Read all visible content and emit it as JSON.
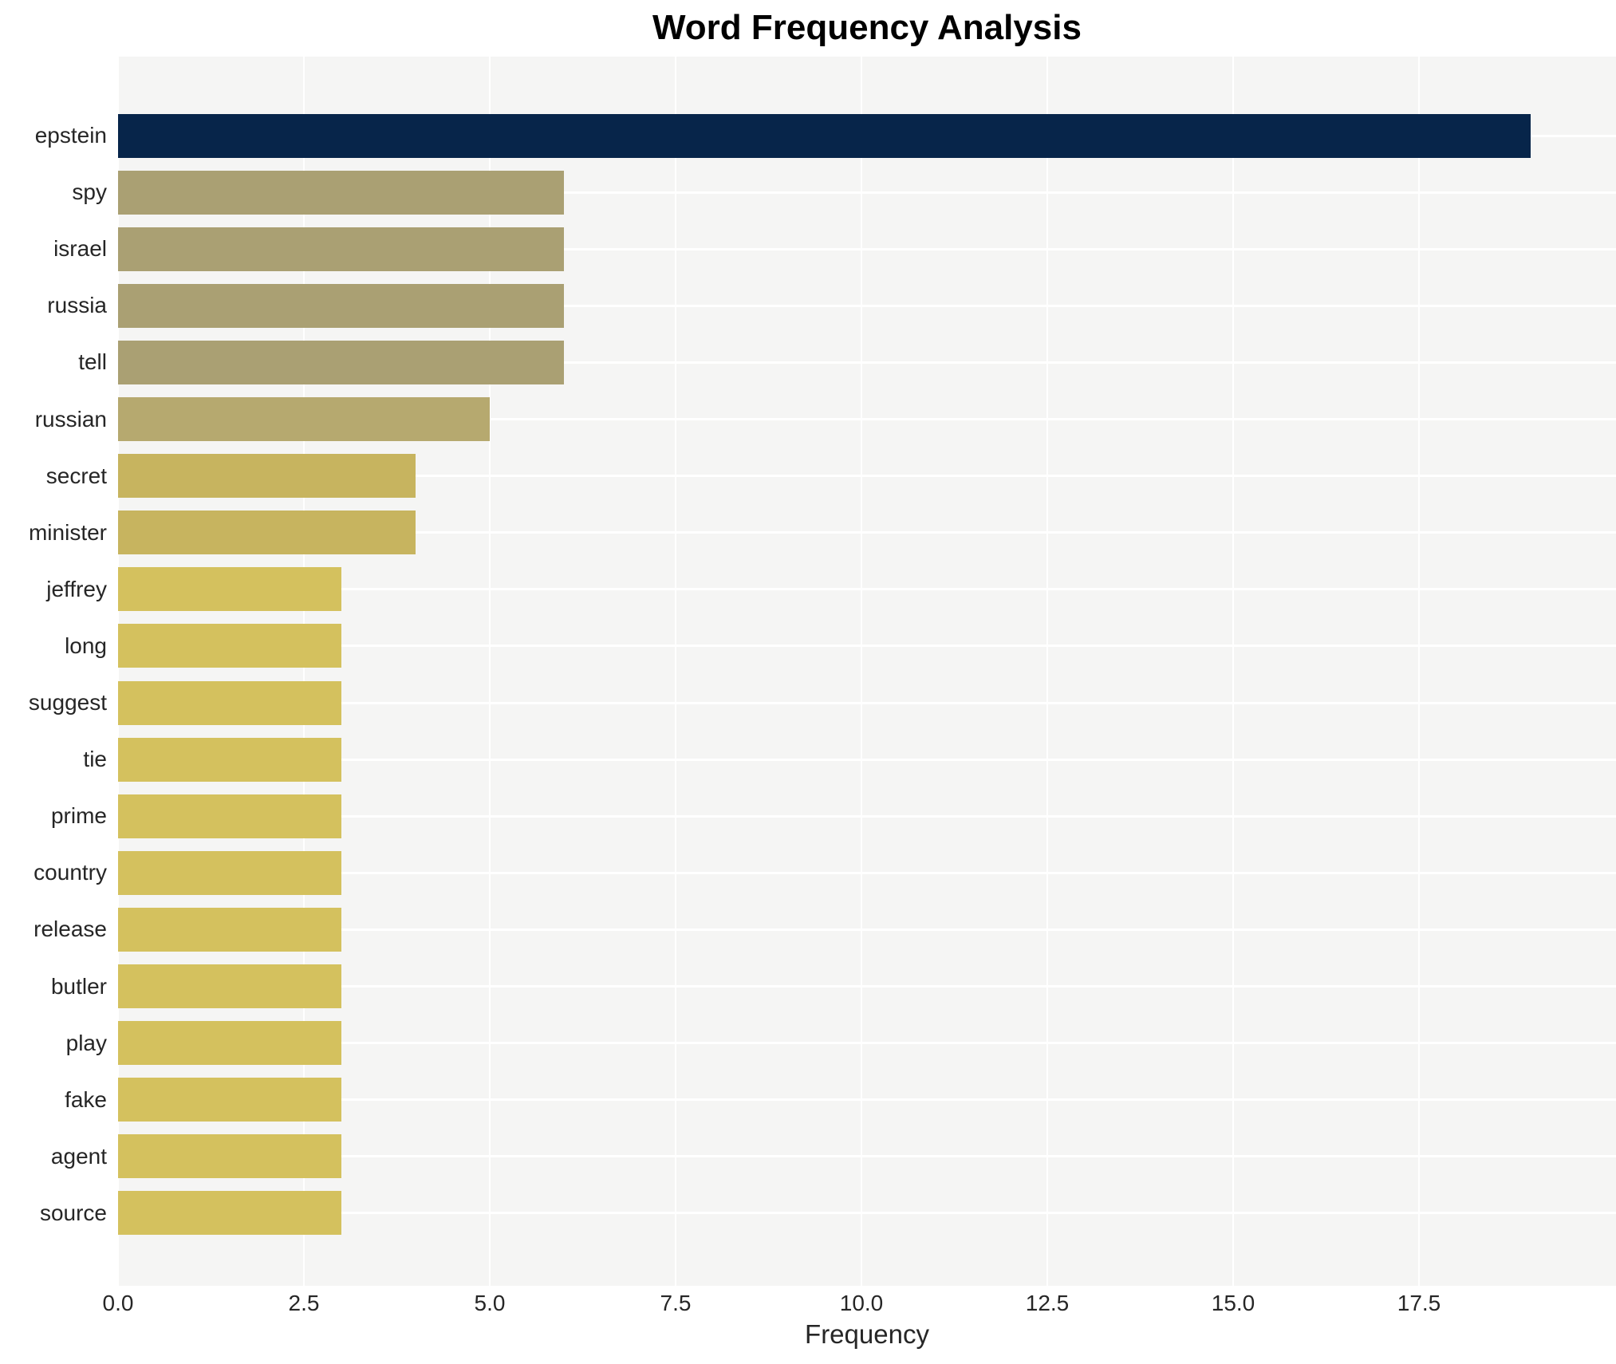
{
  "title": "Word Frequency Analysis",
  "chart_data": {
    "type": "bar",
    "orientation": "horizontal",
    "title": "Word Frequency Analysis",
    "xlabel": "Frequency",
    "ylabel": "",
    "categories": [
      "epstein",
      "spy",
      "israel",
      "russia",
      "tell",
      "russian",
      "secret",
      "minister",
      "jeffrey",
      "long",
      "suggest",
      "tie",
      "prime",
      "country",
      "release",
      "butler",
      "play",
      "fake",
      "agent",
      "source"
    ],
    "values": [
      19,
      6,
      6,
      6,
      6,
      5,
      4,
      4,
      3,
      3,
      3,
      3,
      3,
      3,
      3,
      3,
      3,
      3,
      3,
      3
    ],
    "bar_colors": [
      "#07254a",
      "#aaa073",
      "#aaa073",
      "#aaa073",
      "#aaa073",
      "#b6a96f",
      "#c7b45f",
      "#c7b45f",
      "#d4c15e",
      "#d4c15e",
      "#d4c15e",
      "#d4c15e",
      "#d4c15e",
      "#d4c15e",
      "#d4c15e",
      "#d4c15e",
      "#d4c15e",
      "#d4c15e",
      "#d4c15e",
      "#d4c15e"
    ],
    "x_ticks": [
      0.0,
      2.5,
      5.0,
      7.5,
      10.0,
      12.5,
      15.0,
      17.5
    ],
    "x_tick_labels": [
      "0.0",
      "2.5",
      "5.0",
      "7.5",
      "10.0",
      "12.5",
      "15.0",
      "17.5"
    ],
    "xlim": [
      0,
      20.15
    ],
    "grid": true,
    "legend_position": "none",
    "plot_bg": "#f5f5f4",
    "grid_color": "#ffffff"
  }
}
